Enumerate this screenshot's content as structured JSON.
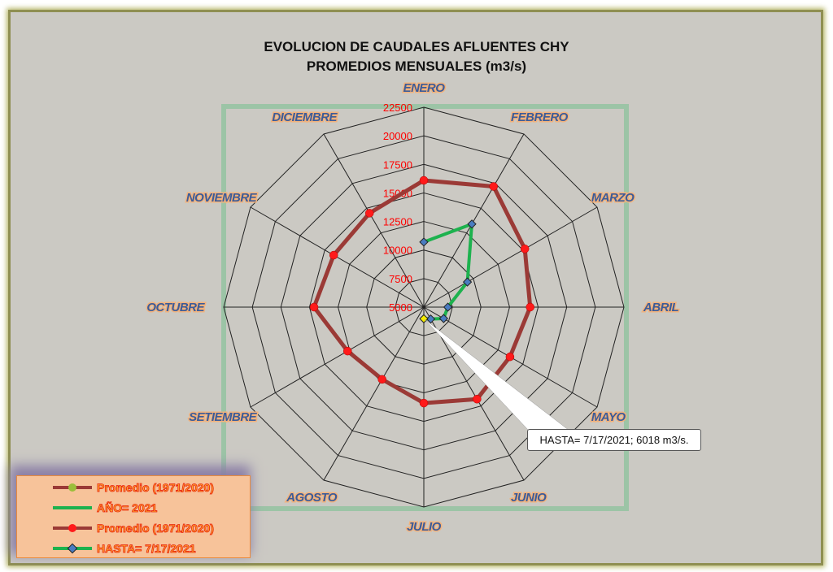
{
  "chart_data": {
    "type": "radar",
    "title": [
      "EVOLUCION DE CAUDALES AFLUENTES CHY",
      "PROMEDIOS MENSUALES (m3/s)"
    ],
    "categories": [
      "ENERO",
      "FEBRERO",
      "MARZO",
      "ABRIL",
      "MAYO",
      "JUNIO",
      "JULIO",
      "AGOSTO",
      "SETIEMBRE",
      "OCTUBRE",
      "NOVIEMBRE",
      "DICIEMBRE"
    ],
    "radial_range": [
      5000,
      22500
    ],
    "radial_ticks": [
      "5000",
      "7500",
      "10000",
      "12500",
      "15000",
      "17500",
      "20000",
      "22500"
    ],
    "grid": true,
    "legend_position": "bottom-left",
    "series": [
      {
        "name": "Promedio (1971/2020)",
        "color": "#9b3a36",
        "marker": "red-circle",
        "marker_color": "#ff1a1a",
        "values": [
          16100,
          17200,
          15200,
          14300,
          13700,
          14300,
          13400,
          12300,
          12700,
          14600,
          14100,
          14500
        ]
      },
      {
        "name": "HASTA= 7/17/2021",
        "color": "#1db24e",
        "marker": "blue-diamond",
        "marker_color": "#4a7cc0",
        "values": [
          10700,
          13400,
          9400,
          7100,
          7000,
          6200,
          6018,
          null,
          null,
          null,
          null,
          null
        ]
      }
    ],
    "annotation": {
      "text": "HASTA= 7/17/2021; 6018 m3/s.",
      "month": "JULIO",
      "value": 6018
    }
  },
  "legend": [
    {
      "label": "Promedio (1971/2020)",
      "line": "#9b3a36",
      "marker": "circle",
      "marker_color": "#9bbf3a"
    },
    {
      "label": "AÑO= 2021",
      "line": "#1db24e",
      "marker": "none"
    },
    {
      "label": "Promedio (1971/2020)",
      "line": "#9b3a36",
      "marker": "circle",
      "marker_color": "#ff1a1a"
    },
    {
      "label": "HASTA= 7/17/2021",
      "line": "#1db24e",
      "marker": "diamond",
      "marker_color": "#4a7cc0"
    }
  ]
}
